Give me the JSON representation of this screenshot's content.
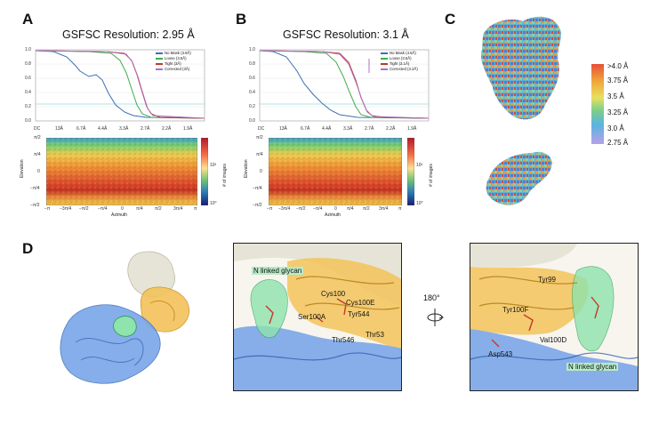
{
  "panels": {
    "a": {
      "letter": "A",
      "title": "GSFSC Resolution: 2.95 Å"
    },
    "b": {
      "letter": "B",
      "title": "GSFSC Resolution: 3.1 Å"
    },
    "c": {
      "letter": "C"
    },
    "d": {
      "letter": "D"
    }
  },
  "fsc_a": {
    "legend": [
      "No Mask (3.8Å)",
      "Loose (3.5Å)",
      "Tight (3Å)",
      "Corrected (3Å)"
    ]
  },
  "fsc_b": {
    "legend": [
      "No Mask (4.5Å)",
      "Loose (3.5Å)",
      "Tight (3.1Å)",
      "Corrected (3.2Å)"
    ]
  },
  "fsc_axes": {
    "yticks": [
      "1.0",
      "0.8",
      "0.6",
      "0.4",
      "0.2",
      "0.0"
    ],
    "xticks": [
      "DC",
      "13Å",
      "6.7Å",
      "4.4Å",
      "3.3Å",
      "2.7Å",
      "2.2Å",
      "1.9Å"
    ]
  },
  "viewing": {
    "ylabel": "Elevation",
    "xlabel": "Azimuth",
    "yticks": [
      "π/2",
      "π/4",
      "0",
      "−π/4",
      "−π/2"
    ],
    "xticks": [
      "−π",
      "−3π/4",
      "−π/2",
      "−π/4",
      "0",
      "π/4",
      "π/2",
      "3π/4",
      "π"
    ],
    "cbar_label": "# of images",
    "cbar_ticks": [
      "10²",
      "10⁰"
    ]
  },
  "resolution_scale": {
    "labels": [
      ">4.0 Å",
      "3.75 Å",
      "3.5 Å",
      "3.25 Å",
      "3.0 Å",
      "2.75 Å"
    ]
  },
  "panel_d": {
    "zoom1_labels": [
      "N linked glycan",
      "Cys100",
      "Cys100E",
      "Ser100A",
      "Tyr544",
      "Thr546",
      "Thr53"
    ],
    "rotation": "180°",
    "zoom2_labels": [
      "Tyr99",
      "Tyr100F",
      "Val100D",
      "Asp543",
      "N linked glycan"
    ]
  },
  "colors": {
    "no_mask": "#3a6fb5",
    "loose": "#3fae49",
    "tight": "#c0392b",
    "corrected": "#b06fc0",
    "glycan": "#5fd38a",
    "antibody": "#f0b43c",
    "receptor": "#6b9be0",
    "gp120": "#dcdcd0"
  }
}
